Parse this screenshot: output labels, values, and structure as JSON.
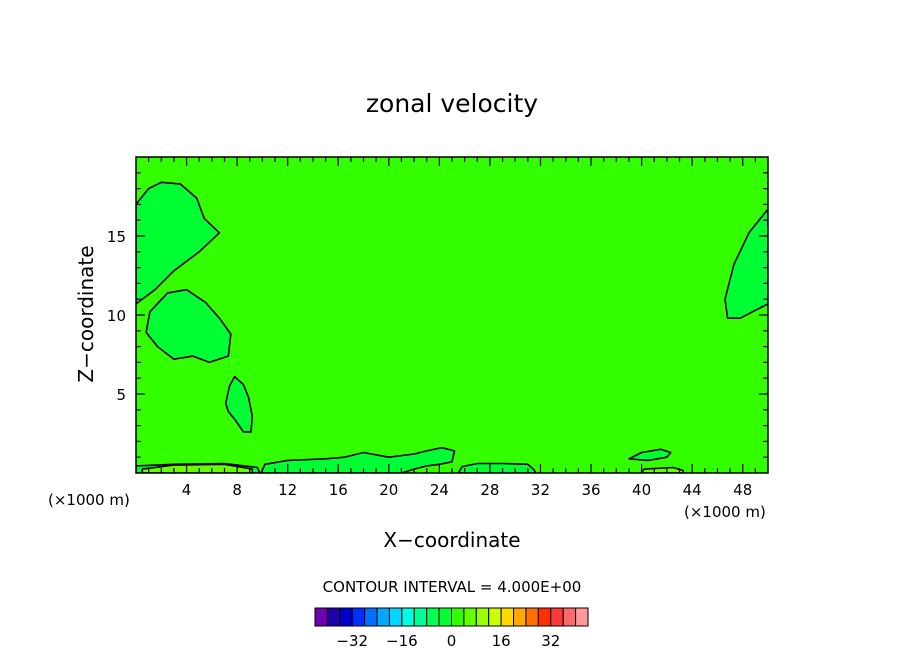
{
  "chart_data": {
    "type": "heatmap",
    "title": "zonal velocity",
    "xlabel": "X−coordinate",
    "ylabel": "Z−coordinate",
    "x_unit_left": "(×1000 m)",
    "x_unit_right": "(×1000 m)",
    "xlim": [
      0,
      50
    ],
    "ylim": [
      0,
      20
    ],
    "x_ticks": [
      "4",
      "8",
      "12",
      "16",
      "20",
      "24",
      "28",
      "32",
      "36",
      "40",
      "44",
      "48"
    ],
    "x_tick_values": [
      4,
      8,
      12,
      16,
      20,
      24,
      28,
      32,
      36,
      40,
      44,
      48
    ],
    "y_ticks": [
      "5",
      "10",
      "15"
    ],
    "y_tick_values": [
      5,
      10,
      15
    ],
    "background_value": 4,
    "background_color": "#33ff00",
    "regions": [
      {
        "name": "upper-left",
        "value": 0,
        "color": "#00ff33",
        "points": [
          [
            0,
            17
          ],
          [
            1,
            18
          ],
          [
            2,
            18.4
          ],
          [
            3.5,
            18.3
          ],
          [
            4.8,
            17.4
          ],
          [
            5.4,
            16.1
          ],
          [
            6.6,
            15.2
          ],
          [
            5,
            14
          ],
          [
            3,
            12.8
          ],
          [
            1.5,
            11.6
          ],
          [
            0,
            10.7
          ]
        ]
      },
      {
        "name": "mid-left",
        "value": 0,
        "color": "#00ff33",
        "points": [
          [
            0.8,
            8.9
          ],
          [
            1.1,
            10.2
          ],
          [
            2.5,
            11.4
          ],
          [
            4,
            11.6
          ],
          [
            5.5,
            10.8
          ],
          [
            6.6,
            9.8
          ],
          [
            7.5,
            8.8
          ],
          [
            7.3,
            7.4
          ],
          [
            5.8,
            7
          ],
          [
            4.5,
            7.4
          ],
          [
            3,
            7.2
          ],
          [
            1.7,
            8
          ]
        ]
      },
      {
        "name": "lower-left",
        "value": 0,
        "color": "#00ff33",
        "points": [
          [
            7.1,
            4.4
          ],
          [
            7.4,
            5.5
          ],
          [
            7.8,
            6.1
          ],
          [
            8.5,
            5.6
          ],
          [
            8.9,
            4.8
          ],
          [
            9.2,
            3.6
          ],
          [
            9.1,
            2.6
          ],
          [
            8.5,
            2.6
          ],
          [
            7.9,
            3.3
          ],
          [
            7.3,
            3.9
          ]
        ]
      },
      {
        "name": "right-edge",
        "value": 0,
        "color": "#00ff33",
        "points": [
          [
            50,
            16.7
          ],
          [
            48.5,
            15.2
          ],
          [
            47.3,
            13.2
          ],
          [
            46.6,
            11
          ],
          [
            46.8,
            9.8
          ],
          [
            47.8,
            9.8
          ],
          [
            49,
            10.3
          ],
          [
            50,
            10.7
          ]
        ]
      },
      {
        "name": "bottom-band-1",
        "value": 0,
        "color": "#00ff33",
        "points": [
          [
            0,
            0
          ],
          [
            0,
            0.45
          ],
          [
            3,
            0.55
          ],
          [
            7,
            0.6
          ],
          [
            9.6,
            0.35
          ],
          [
            9.8,
            0
          ]
        ]
      },
      {
        "name": "bottom-band-2",
        "value": 0,
        "color": "#00ff33",
        "points": [
          [
            9.9,
            0
          ],
          [
            10.2,
            0.55
          ],
          [
            12,
            0.8
          ],
          [
            15,
            0.9
          ],
          [
            16.5,
            1
          ],
          [
            18,
            1.3
          ],
          [
            20,
            1
          ],
          [
            22,
            1.2
          ],
          [
            23,
            1.4
          ],
          [
            24.2,
            1.6
          ],
          [
            25.2,
            1.4
          ],
          [
            25,
            0.7
          ],
          [
            24,
            0.55
          ],
          [
            23,
            0.45
          ],
          [
            22,
            0.25
          ],
          [
            21,
            0
          ]
        ]
      },
      {
        "name": "bottom-band-3",
        "value": 0,
        "color": "#00ff33",
        "points": [
          [
            25.5,
            0
          ],
          [
            25.8,
            0.4
          ],
          [
            27,
            0.6
          ],
          [
            29,
            0.6
          ],
          [
            31,
            0.55
          ],
          [
            31.5,
            0.2
          ],
          [
            31.6,
            0
          ]
        ]
      },
      {
        "name": "bottom-blob-4",
        "value": 0,
        "color": "#00ff33",
        "points": [
          [
            39,
            0.9
          ],
          [
            40,
            1.3
          ],
          [
            41.5,
            1.5
          ],
          [
            42.3,
            1.3
          ],
          [
            42,
            1
          ],
          [
            40.5,
            0.8
          ]
        ]
      },
      {
        "name": "bottom-band-5",
        "value": 8,
        "color": "#66ff00",
        "points": [
          [
            0.5,
            0
          ],
          [
            0.5,
            0.25
          ],
          [
            3,
            0.5
          ],
          [
            7,
            0.55
          ],
          [
            9.2,
            0.25
          ],
          [
            9.2,
            0
          ]
        ]
      },
      {
        "name": "bottom-band-6",
        "value": 8,
        "color": "#66ff00",
        "points": [
          [
            40,
            0
          ],
          [
            40.2,
            0.25
          ],
          [
            42.5,
            0.35
          ],
          [
            43.3,
            0.15
          ],
          [
            43.3,
            0
          ]
        ]
      }
    ],
    "contour_interval_label": "CONTOUR INTERVAL = 4.000E+00",
    "colorbar": {
      "colors": [
        "#7000b0",
        "#2000a8",
        "#0000c8",
        "#0030ff",
        "#0070ff",
        "#00a8ff",
        "#00d8ff",
        "#00ffe0",
        "#00ff99",
        "#00ff55",
        "#00ff33",
        "#33ff00",
        "#66ff00",
        "#99ff00",
        "#ccff00",
        "#ffd800",
        "#ffa800",
        "#ff7000",
        "#ff3000",
        "#ff3838",
        "#ff6868",
        "#ff9898"
      ],
      "tick_labels": [
        "−32",
        "−16",
        "0",
        "16",
        "32"
      ],
      "tick_values": [
        -32,
        -16,
        0,
        16,
        32
      ],
      "min": -44,
      "max": 44
    }
  }
}
